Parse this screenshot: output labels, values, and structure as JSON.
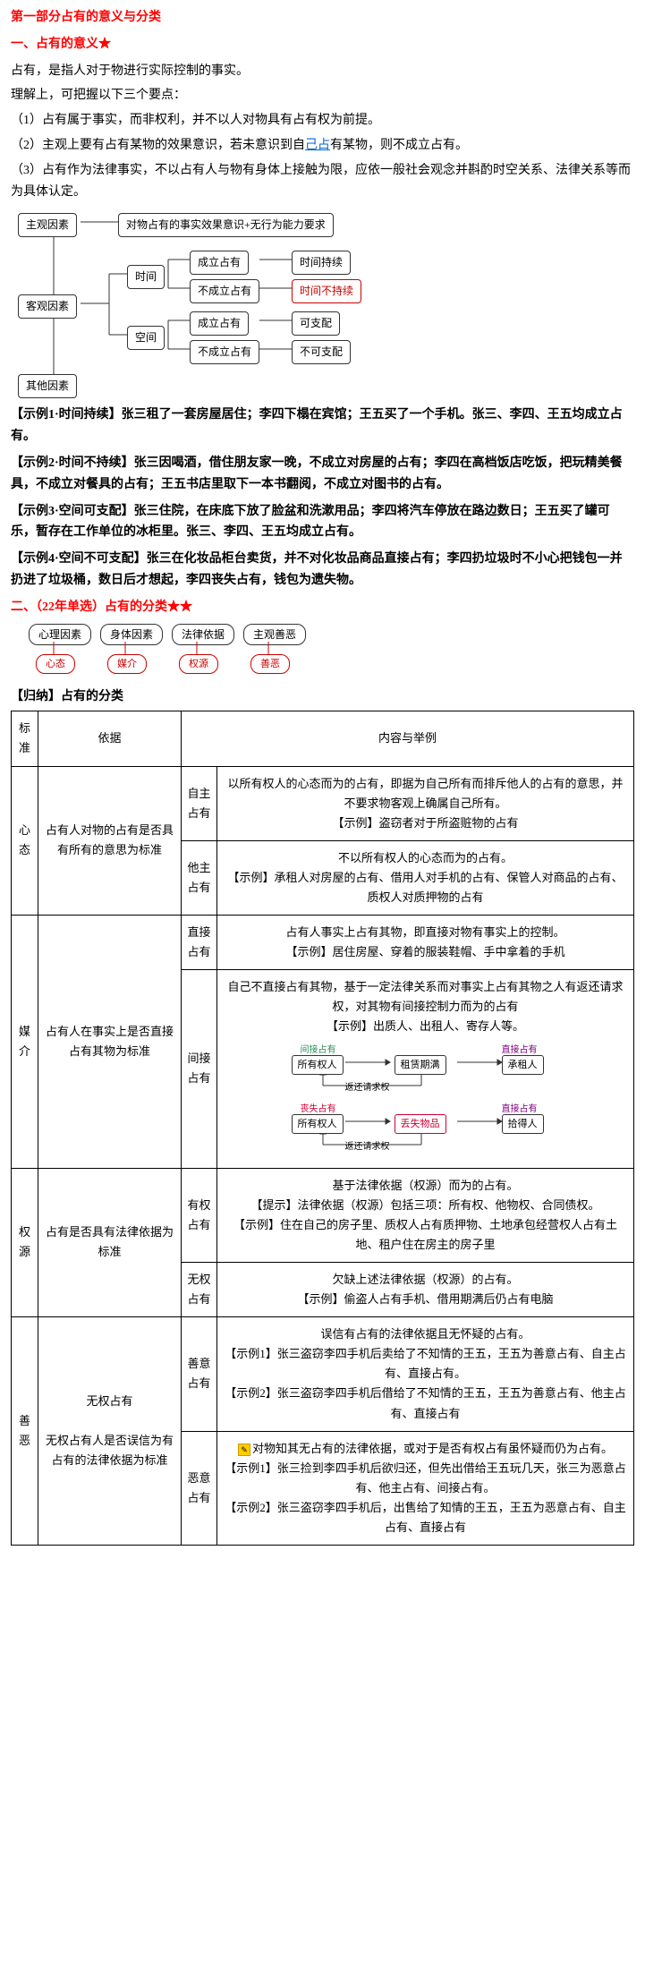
{
  "header": {
    "part": "第一部分占有的意义与分类",
    "sec1": "一、占有的意义★",
    "intro1": "占有，是指人对于物进行实际控制的事实。",
    "intro2": "理解上，可把握以下三个要点：",
    "pt1": "（1）占有属于事实，而非权利，并不以人对物具有占有权为前提。",
    "pt2a": "（2）主观上要有占有某物的效果意识，若未意识到自",
    "pt2u": "己占",
    "pt2b": "有某物，则不成立占有。",
    "pt3": "（3）占有作为法律事实，不以占有人与物有身体上接触为限，应依一般社会观念并斟酌时空关系、法律关系等而为具体认定。"
  },
  "diagram1": {
    "n_subj": "主观因素",
    "n_subj2": "对物占有的事实效果意识+无行为能力要求",
    "n_obj": "客观因素",
    "n_time": "时间",
    "n_space": "空间",
    "n_other": "其他因素",
    "n_est1": "成立占有",
    "n_nest1": "不成立占有",
    "n_est2": "成立占有",
    "n_nest2": "不成立占有",
    "n_tcont": "时间持续",
    "n_tncont": "时间不持续",
    "n_disp": "可支配",
    "n_ndisp": "不可支配"
  },
  "examples": {
    "e1": "【示例1·时间持续】张三租了一套房屋居住；李四下榻在宾馆；王五买了一个手机。张三、李四、王五均成立占有。",
    "e2": "【示例2·时间不持续】张三因喝酒，借住朋友家一晚，不成立对房屋的占有；李四在高档饭店吃饭，把玩精美餐具，不成立对餐具的占有；王五书店里取下一本书翻阅，不成立对图书的占有。",
    "e3": "【示例3·空间可支配】张三住院，在床底下放了脸盆和洗漱用品；李四将汽车停放在路边数日；王五买了罐可乐，暂存在工作单位的冰柜里。张三、李四、王五均成立占有。",
    "e4": "【示例4·空间不可支配】张三在化妆品柜台卖货，并不对化妆品商品直接占有；李四扔垃圾时不小心把钱包一并扔进了垃圾桶，数日后才想起，李四丧失占有，钱包为遗失物。"
  },
  "sec2": {
    "title": "二、（22年单选）占有的分类★★",
    "c1": "心理因素",
    "c2": "身体因素",
    "c3": "法律依据",
    "c4": "主观善恶",
    "o1": "心态",
    "o2": "媒介",
    "o3": "权源",
    "o4": "善恶"
  },
  "table": {
    "header": "【归纳】占有的分类",
    "h1": "标准",
    "h2": "依据",
    "h3": "内容与举例",
    "r1_std": "心态",
    "r1_base": "占有人对物的占有是否具有所有的意思为标准",
    "r1a_cat": "自主占有",
    "r1a_txt": "以所有权人的心态而为的占有，即据为自己所有而排斥他人的占有的意思，并不要求物客观上确属自己所有。\n【示例】盗窃者对于所盗赃物的占有",
    "r1b_cat": "他主占有",
    "r1b_txt": "不以所有权人的心态而为的占有。\n【示例】承租人对房屋的占有、借用人对手机的占有、保管人对商品的占有、质权人对质押物的占有",
    "r2_std": "媒介",
    "r2_base": "占有人在事实上是否直接占有其物为标准",
    "r2a_cat": "直接占有",
    "r2a_txt": "占有人事实上占有其物，即直接对物有事实上的控制。\n【示例】居住房屋、穿着的服装鞋帽、手中拿着的手机",
    "r2b_cat": "间接占有",
    "r2b_txt1": "自己不直接占有其物，基于一定法律关系而对事实上占有其物之人有返还请求权，对其物有间接控制力而为的占有",
    "r2b_txt2": "【示例】出质人、出租人、寄存人等。",
    "sub1": {
      "b1": "所有权人",
      "b2": "租赁期满",
      "b3": "承租人",
      "b4": "返还请求权",
      "t1": "间接占有",
      "t2": "直接占有"
    },
    "sub2": {
      "b1": "所有权人",
      "b2": "丢失物品",
      "b3": "拾得人",
      "b4": "返还请求权",
      "t1": "丧失占有",
      "t2": "直接占有"
    },
    "r3_std": "权源",
    "r3_base": "占有是否具有法律依据为标准",
    "r3a_cat": "有权占有",
    "r3a_txt": "基于法律依据（权源）而为的占有。\n【提示】法律依据（权源）包括三项：所有权、他物权、合同债权。\n【示例】住在自己的房子里、质权人占有质押物、土地承包经营权人占有土地、租户住在房主的房子里",
    "r3b_cat": "无权占有",
    "r3b_txt": "欠缺上述法律依据（权源）的占有。\n【示例】偷盗人占有手机、借用期满后仍占有电脑",
    "r4_std": "善恶",
    "r4a": "无权占有",
    "r4_base": "无权占有人是否误信为有占有的法律依据为标准",
    "r4a_cat": "善意占有",
    "r4a_txt": "误信有占有的法律依据且无怀疑的占有。\n【示例1】张三盗窃李四手机后卖给了不知情的王五，王五为善意占有、自主占有、直接占有。\n【示例2】张三盗窃李四手机后借给了不知情的王五，王五为善意占有、他主占有、直接占有",
    "r4b_cat": "恶意占有",
    "r4b_txt": "对物知其无占有的法律依据，或对于是否有权占有虽怀疑而仍为占有。\n【示例1】张三捡到李四手机后欲归还，但先出借给王五玩几天，张三为恶意占有、他主占有、间接占有。\n【示例2】张三盗窃李四手机后，出售给了知情的王五，王五为恶意占有、自主占有、直接占有"
  }
}
